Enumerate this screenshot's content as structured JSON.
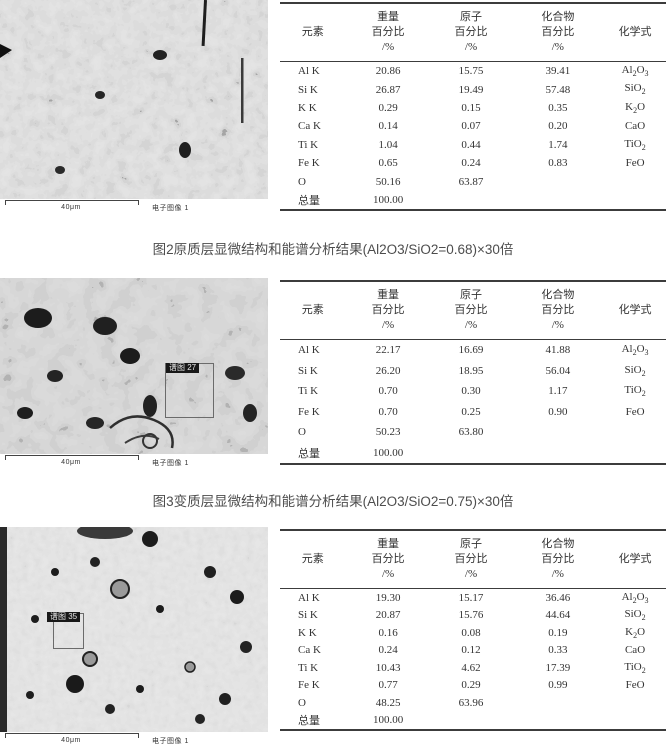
{
  "captions": [
    "图2原质层显微结构和能谱分析结果(Al2O3/SiO2=0.68)×30倍",
    "图3变质层显微结构和能谱分析结果(Al2O3/SiO2=0.75)×30倍"
  ],
  "figures": [
    {
      "scale_label": "40μm",
      "image_type_label": "电子图像 1",
      "spectrum_label": ""
    },
    {
      "scale_label": "40μm",
      "image_type_label": "电子图像 1",
      "spectrum_label": "谱图 27"
    },
    {
      "scale_label": "40μm",
      "image_type_label": "电子图像 1",
      "spectrum_label": "谱图 35"
    }
  ],
  "tables": [
    {
      "headers": {
        "element": "元素",
        "weight": [
          "重量",
          "百分比",
          "/%"
        ],
        "atomic": [
          "原子",
          "百分比",
          "/%"
        ],
        "compound": [
          "化合物",
          "百分比",
          "/%"
        ],
        "formula": "化学式"
      },
      "rows": [
        {
          "element": "Al K",
          "weight": "20.86",
          "atomic": "15.75",
          "compound": "39.41",
          "formula": "Al2O3"
        },
        {
          "element": "Si K",
          "weight": "26.87",
          "atomic": "19.49",
          "compound": "57.48",
          "formula": "SiO2"
        },
        {
          "element": "K K",
          "weight": "0.29",
          "atomic": "0.15",
          "compound": "0.35",
          "formula": "K2O"
        },
        {
          "element": "Ca K",
          "weight": "0.14",
          "atomic": "0.07",
          "compound": "0.20",
          "formula": "CaO"
        },
        {
          "element": "Ti K",
          "weight": "1.04",
          "atomic": "0.44",
          "compound": "1.74",
          "formula": "TiO2"
        },
        {
          "element": "Fe K",
          "weight": "0.65",
          "atomic": "0.24",
          "compound": "0.83",
          "formula": "FeO"
        },
        {
          "element": "O",
          "weight": "50.16",
          "atomic": "63.87",
          "compound": "",
          "formula": ""
        },
        {
          "element": "总量",
          "weight": "100.00",
          "atomic": "",
          "compound": "",
          "formula": ""
        }
      ]
    },
    {
      "headers": {
        "element": "元素",
        "weight": [
          "重量",
          "百分比",
          "/%"
        ],
        "atomic": [
          "原子",
          "百分比",
          "/%"
        ],
        "compound": [
          "化合物",
          "百分比",
          "/%"
        ],
        "formula": "化学式"
      },
      "rows": [
        {
          "element": "Al K",
          "weight": "22.17",
          "atomic": "16.69",
          "compound": "41.88",
          "formula": "Al2O3"
        },
        {
          "element": "Si K",
          "weight": "26.20",
          "atomic": "18.95",
          "compound": "56.04",
          "formula": "SiO2"
        },
        {
          "element": "Ti K",
          "weight": "0.70",
          "atomic": "0.30",
          "compound": "1.17",
          "formula": "TiO2"
        },
        {
          "element": "Fe K",
          "weight": "0.70",
          "atomic": "0.25",
          "compound": "0.90",
          "formula": "FeO"
        },
        {
          "element": "O",
          "weight": "50.23",
          "atomic": "63.80",
          "compound": "",
          "formula": ""
        },
        {
          "element": "总量",
          "weight": "100.00",
          "atomic": "",
          "compound": "",
          "formula": ""
        }
      ]
    },
    {
      "headers": {
        "element": "元素",
        "weight": [
          "重量",
          "百分比",
          "/%"
        ],
        "atomic": [
          "原子",
          "百分比",
          "/%"
        ],
        "compound": [
          "化合物",
          "百分比",
          "/%"
        ],
        "formula": "化学式"
      },
      "rows": [
        {
          "element": "Al K",
          "weight": "19.30",
          "atomic": "15.17",
          "compound": "36.46",
          "formula": "Al2O3"
        },
        {
          "element": "Si K",
          "weight": "20.87",
          "atomic": "15.76",
          "compound": "44.64",
          "formula": "SiO2"
        },
        {
          "element": "K K",
          "weight": "0.16",
          "atomic": "0.08",
          "compound": "0.19",
          "formula": "K2O"
        },
        {
          "element": "Ca K",
          "weight": "0.24",
          "atomic": "0.12",
          "compound": "0.33",
          "formula": "CaO"
        },
        {
          "element": "Ti K",
          "weight": "10.43",
          "atomic": "4.62",
          "compound": "17.39",
          "formula": "TiO2"
        },
        {
          "element": "Fe K",
          "weight": "0.77",
          "atomic": "0.29",
          "compound": "0.99",
          "formula": "FeO"
        },
        {
          "element": "O",
          "weight": "48.25",
          "atomic": "63.96",
          "compound": "",
          "formula": ""
        },
        {
          "element": "总量",
          "weight": "100.00",
          "atomic": "",
          "compound": "",
          "formula": ""
        }
      ]
    }
  ],
  "colors": {
    "table_rule": "#3c3c3c",
    "micrograph_base": "#b8b8b8",
    "pore_dark": "#1c1c1c"
  }
}
